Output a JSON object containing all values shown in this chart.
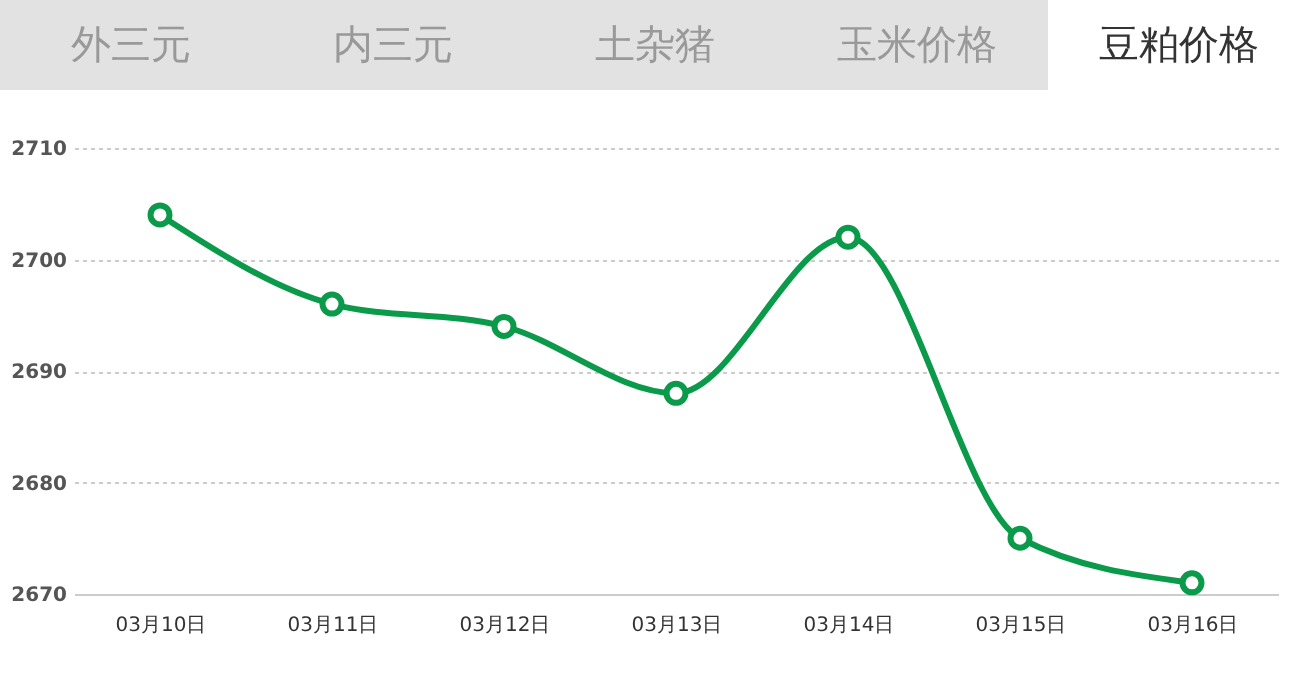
{
  "chart_data": {
    "type": "line",
    "annotations": [
      "外三元",
      "内三元",
      "土杂猪",
      "玉米价格",
      "豆粕价格"
    ],
    "categories": [
      "03月10日",
      "03月11日",
      "03月12日",
      "03月13日",
      "03月14日",
      "03月15日",
      "03月16日"
    ],
    "series": [
      {
        "color": "#0a9a4a",
        "values": [
          2704,
          2696,
          2694,
          2688,
          2702,
          2675,
          2671
        ]
      }
    ],
    "ylim": [
      2670,
      2710
    ],
    "yticks": [
      2670,
      2680,
      2690,
      2700,
      2710
    ],
    "grid": "y",
    "marker": "circle"
  }
}
